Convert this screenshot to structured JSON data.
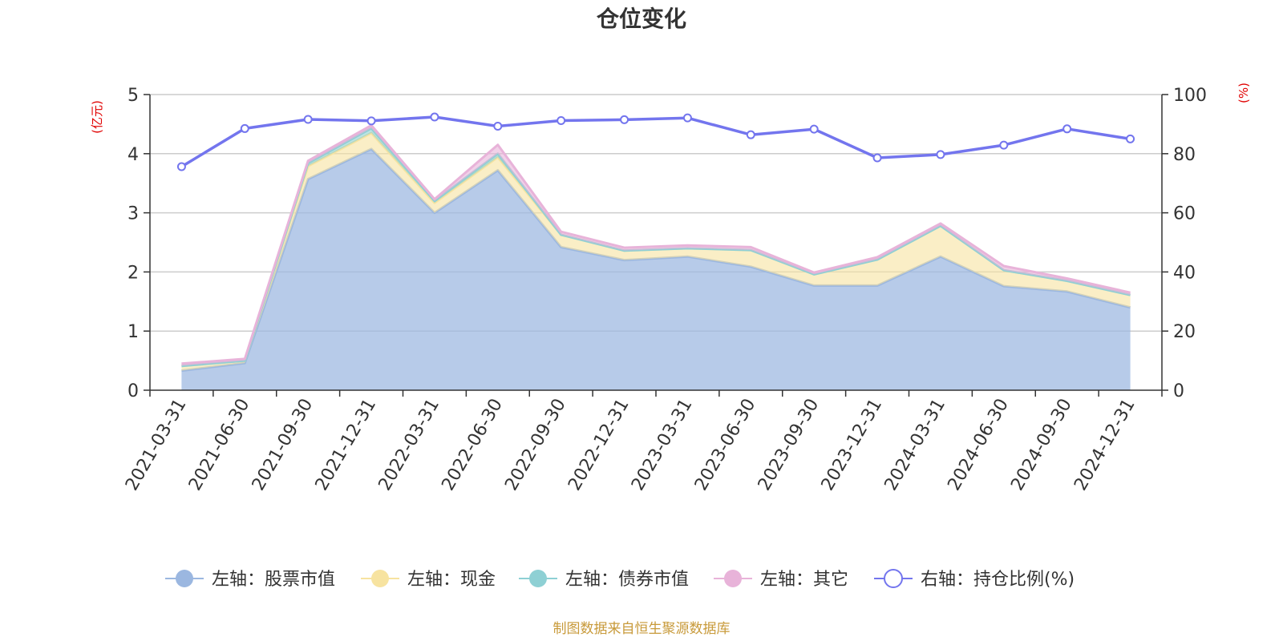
{
  "chart_data": {
    "type": "area",
    "title": "仓位变化",
    "left_axis_unit": "(亿元)",
    "right_axis_unit": "(%)",
    "categories": [
      "2021-03-31",
      "2021-06-30",
      "2021-09-30",
      "2021-12-31",
      "2022-03-31",
      "2022-06-30",
      "2022-09-30",
      "2022-12-31",
      "2023-03-31",
      "2023-06-30",
      "2023-09-30",
      "2023-12-31",
      "2024-03-31",
      "2024-06-30",
      "2024-09-30",
      "2024-12-31"
    ],
    "left_ylim": [
      0,
      5
    ],
    "left_ticks": [
      "0",
      "1",
      "2",
      "3",
      "4",
      "5"
    ],
    "right_ylim": [
      0,
      100
    ],
    "right_ticks": [
      "0",
      "20",
      "40",
      "60",
      "80",
      "100"
    ],
    "stacked_series": [
      {
        "name": "左轴：股票市值",
        "color": "#9bb7e0",
        "values": [
          0.33,
          0.46,
          3.57,
          4.08,
          3.0,
          3.72,
          2.42,
          2.2,
          2.26,
          2.09,
          1.77,
          1.77,
          2.26,
          1.76,
          1.67,
          1.4
        ]
      },
      {
        "name": "左轴：现金",
        "color": "#f7e3a0",
        "values": [
          0.08,
          0.04,
          0.22,
          0.27,
          0.17,
          0.22,
          0.21,
          0.16,
          0.14,
          0.28,
          0.19,
          0.44,
          0.52,
          0.27,
          0.18,
          0.21
        ]
      },
      {
        "name": "左轴：债券市值",
        "color": "#8ed0d4",
        "values": [
          0.0,
          0.0,
          0.05,
          0.08,
          0.03,
          0.06,
          0.0,
          0.0,
          0.0,
          0.0,
          0.0,
          0.0,
          0.0,
          0.0,
          0.0,
          0.0
        ]
      },
      {
        "name": "左轴：其它",
        "color": "#e8b3d9",
        "values": [
          0.04,
          0.03,
          0.04,
          0.05,
          0.03,
          0.15,
          0.05,
          0.05,
          0.05,
          0.05,
          0.03,
          0.04,
          0.04,
          0.07,
          0.04,
          0.04
        ]
      }
    ],
    "line_series": {
      "name": "右轴：持仓比例(%)",
      "color": "#7375ee",
      "values": [
        75.6,
        88.5,
        91.6,
        91.1,
        92.4,
        89.3,
        91.2,
        91.5,
        92.1,
        86.4,
        88.3,
        78.6,
        79.7,
        82.9,
        88.4,
        85.0
      ]
    },
    "grid": true,
    "legend_position": "bottom"
  },
  "source_note": "制图数据来自恒生聚源数据库"
}
